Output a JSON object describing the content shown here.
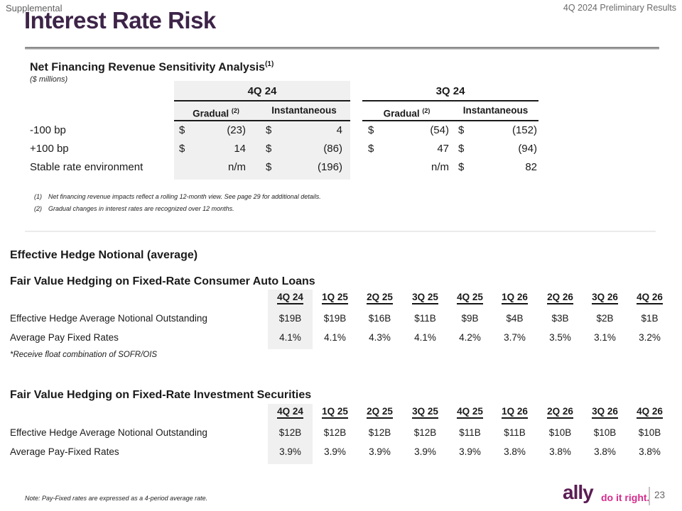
{
  "header": {
    "supplemental": "Supplemental",
    "title": "Interest Rate Risk",
    "deck_label": "4Q 2024 Preliminary Results"
  },
  "sensitivity": {
    "title": "Net Financing Revenue Sensitivity Analysis",
    "title_sup": "(1)",
    "units": "($ millions)",
    "groups": [
      "4Q 24",
      "3Q 24"
    ],
    "sub_gradual": "Gradual",
    "sub_gradual_sup": "(2)",
    "sub_instantaneous": "Instantaneous",
    "rows": [
      {
        "label": "-100 bp",
        "cells": [
          {
            "cur": "$",
            "val": "(23)"
          },
          {
            "cur": "$",
            "val": "4"
          },
          {
            "cur": "$",
            "val": "(54)"
          },
          {
            "cur": "$",
            "val": "(152)"
          }
        ]
      },
      {
        "label": "+100 bp",
        "cells": [
          {
            "cur": "$",
            "val": "14"
          },
          {
            "cur": "$",
            "val": "(86)"
          },
          {
            "cur": "$",
            "val": "47"
          },
          {
            "cur": "$",
            "val": "(94)"
          }
        ]
      },
      {
        "label": "Stable rate environment",
        "cells": [
          {
            "cur": "",
            "val": "n/m"
          },
          {
            "cur": "$",
            "val": "(196)"
          },
          {
            "cur": "",
            "val": "n/m"
          },
          {
            "cur": "$",
            "val": "82"
          }
        ]
      }
    ],
    "footnotes": [
      {
        "marker": "(1)",
        "text": "Net financing revenue impacts reflect a rolling 12-month view. See page 29 for additional details."
      },
      {
        "marker": "(2)",
        "text": "Gradual changes in interest rates are recognized over 12 months."
      }
    ]
  },
  "hedge": {
    "section_title": "Effective Hedge Notional (average)",
    "auto": {
      "title": "Fair Value Hedging on Fixed-Rate Consumer Auto Loans",
      "columns": [
        "4Q 24",
        "1Q 25",
        "2Q 25",
        "3Q 25",
        "4Q 25",
        "1Q 26",
        "2Q 26",
        "3Q 26",
        "4Q 26"
      ],
      "notional_label": "Effective Hedge Average Notional Outstanding",
      "notional": [
        "$19B",
        "$19B",
        "$16B",
        "$11B",
        "$9B",
        "$4B",
        "$3B",
        "$2B",
        "$1B"
      ],
      "rates_label": "Average Pay Fixed Rates",
      "rates": [
        "4.1%",
        "4.1%",
        "4.3%",
        "4.1%",
        "4.2%",
        "3.7%",
        "3.5%",
        "3.1%",
        "3.2%"
      ],
      "footnote": "*Receive float combination of SOFR/OIS"
    },
    "securities": {
      "title": "Fair Value Hedging on Fixed-Rate Investment Securities",
      "columns": [
        "4Q 24",
        "1Q 25",
        "2Q 25",
        "3Q 25",
        "4Q 25",
        "1Q 26",
        "2Q 26",
        "3Q 26",
        "4Q 26"
      ],
      "notional_label": "Effective Hedge Average Notional Outstanding",
      "notional": [
        "$12B",
        "$12B",
        "$12B",
        "$12B",
        "$11B",
        "$11B",
        "$10B",
        "$10B",
        "$10B"
      ],
      "rates_label": "Average Pay-Fixed Rates",
      "rates": [
        "3.9%",
        "3.9%",
        "3.9%",
        "3.9%",
        "3.9%",
        "3.8%",
        "3.8%",
        "3.8%",
        "3.8%"
      ]
    }
  },
  "footer": {
    "note": "Note: Pay-Fixed rates are expressed as a 4-period average rate.",
    "logo": "ally",
    "tagline": "do it right.",
    "page": "23"
  },
  "colors": {
    "title_purple": "#3d2448",
    "ally_plum": "#5b1d54",
    "ally_pink": "#d62b8d",
    "highlight_gray": "#f0f0f0"
  }
}
